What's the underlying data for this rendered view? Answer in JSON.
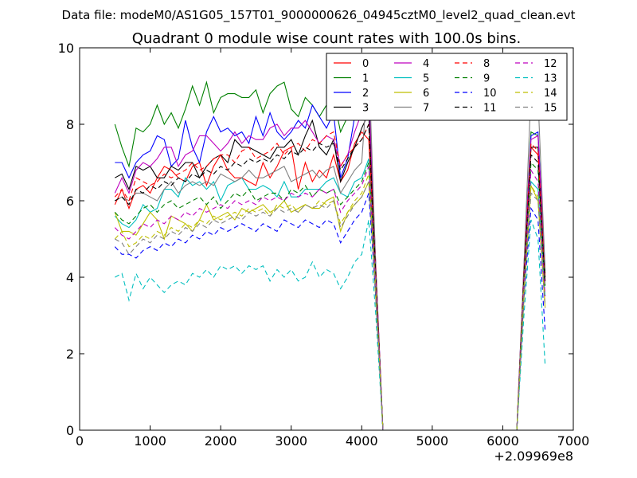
{
  "figure": {
    "suptitle": "Data file: modeM0/AS1G05_157T01_9000000626_04945cztM0_level2_quad_clean.evt"
  },
  "chart_data": {
    "type": "line",
    "title": "Quadrant 0 module wise count rates with 100.0s bins.",
    "xlabel": "",
    "ylabel": "",
    "xlim": [
      0,
      7000
    ],
    "ylim": [
      0,
      10
    ],
    "xticks": [
      0,
      1000,
      2000,
      3000,
      4000,
      5000,
      6000,
      7000
    ],
    "yticks": [
      0,
      2,
      4,
      6,
      8,
      10
    ],
    "x_offset_label": "+2.09969e8",
    "grid": false,
    "legend_placement": "top-right",
    "legend_columns": 4,
    "x": [
      500,
      600,
      700,
      800,
      900,
      1000,
      1100,
      1200,
      1300,
      1400,
      1500,
      1600,
      1700,
      1800,
      1900,
      2000,
      2100,
      2200,
      2300,
      2400,
      2500,
      2600,
      2700,
      2800,
      2900,
      3000,
      3100,
      3200,
      3300,
      3400,
      3500,
      3600,
      3700,
      3800,
      3900,
      4000,
      4100,
      4200,
      4300,
      4400,
      4500,
      4600,
      4700,
      4800,
      4900,
      5000,
      5100,
      5200,
      5300,
      5400,
      5500,
      5600,
      5700,
      5800,
      5900,
      6000,
      6100,
      6200,
      6300,
      6400,
      6500,
      6600
    ],
    "series": [
      {
        "name": "0",
        "color": "#ff0000",
        "dash": "solid",
        "values": [
          5.9,
          6.3,
          5.8,
          6.3,
          6.4,
          6.2,
          6.6,
          6.9,
          6.8,
          6.6,
          6.5,
          6.9,
          7.0,
          6.4,
          6.9,
          7.2,
          6.8,
          6.6,
          6.6,
          6.5,
          6.4,
          7.0,
          6.6,
          6.9,
          7.3,
          7.4,
          6.3,
          7.0,
          6.5,
          6.8,
          6.6,
          7.2,
          6.5,
          6.8,
          7.5,
          7.8,
          7.6,
          4.0,
          0,
          0,
          0,
          0,
          0,
          0,
          0,
          0,
          0,
          0,
          0,
          0,
          0,
          0,
          0,
          0,
          0,
          0,
          0,
          0,
          4.0,
          7.4,
          7.2,
          3.9
        ]
      },
      {
        "name": "1",
        "color": "#008000",
        "dash": "solid",
        "values": [
          8.0,
          7.4,
          6.9,
          7.9,
          7.8,
          8.0,
          8.5,
          8.0,
          8.3,
          7.9,
          8.4,
          9.0,
          8.5,
          9.1,
          8.3,
          8.7,
          8.8,
          8.8,
          8.7,
          8.7,
          8.9,
          8.3,
          8.8,
          9.0,
          9.1,
          8.4,
          8.2,
          8.7,
          8.5,
          8.2,
          8.5,
          8.7,
          7.8,
          8.2,
          8.5,
          8.6,
          8.9,
          4.2,
          0,
          0,
          0,
          0,
          0,
          0,
          0,
          0,
          0,
          0,
          0,
          0,
          0,
          0,
          0,
          0,
          0,
          0,
          0,
          0,
          4.2,
          7.8,
          7.7,
          4.1
        ]
      },
      {
        "name": "2",
        "color": "#0000ff",
        "dash": "solid",
        "values": [
          7.0,
          7.0,
          6.6,
          7.0,
          7.2,
          7.3,
          7.7,
          7.6,
          6.9,
          7.1,
          8.1,
          7.4,
          7.0,
          7.8,
          8.2,
          7.8,
          7.9,
          7.7,
          7.8,
          7.5,
          8.2,
          7.7,
          8.3,
          7.8,
          7.6,
          7.8,
          8.1,
          7.9,
          8.5,
          8.2,
          7.9,
          8.3,
          6.6,
          7.1,
          8.2,
          8.4,
          8.9,
          4.2,
          0,
          0,
          0,
          0,
          0,
          0,
          0,
          0,
          0,
          0,
          0,
          0,
          0,
          0,
          0,
          0,
          0,
          0,
          0,
          0,
          4.2,
          7.7,
          7.8,
          4.2
        ]
      },
      {
        "name": "3",
        "color": "#000000",
        "dash": "solid",
        "values": [
          6.6,
          6.7,
          6.3,
          6.9,
          6.8,
          6.9,
          6.6,
          6.6,
          6.9,
          6.8,
          7.0,
          7.0,
          6.6,
          6.9,
          7.1,
          7.2,
          7.0,
          7.6,
          7.4,
          7.4,
          7.3,
          7.2,
          7.1,
          7.4,
          7.4,
          7.6,
          7.2,
          7.7,
          8.1,
          7.4,
          7.2,
          7.6,
          6.5,
          7.0,
          7.4,
          7.9,
          8.3,
          4.1,
          0,
          0,
          0,
          0,
          0,
          0,
          0,
          0,
          0,
          0,
          0,
          0,
          0,
          0,
          0,
          0,
          0,
          0,
          0,
          0,
          4.1,
          7.4,
          7.4,
          4.0
        ]
      },
      {
        "name": "4",
        "color": "#bf00bf",
        "dash": "solid",
        "values": [
          6.2,
          6.6,
          6.2,
          6.8,
          7.0,
          6.9,
          7.1,
          7.4,
          7.4,
          6.9,
          7.2,
          7.3,
          7.7,
          7.7,
          7.5,
          7.3,
          7.5,
          7.8,
          7.5,
          7.7,
          7.6,
          7.6,
          7.9,
          8.0,
          7.7,
          7.9,
          7.9,
          8.1,
          7.8,
          7.5,
          7.7,
          7.6,
          6.9,
          7.2,
          7.8,
          8.3,
          8.9,
          4.3,
          0,
          0,
          0,
          0,
          0,
          0,
          0,
          0,
          0,
          0,
          0,
          0,
          0,
          0,
          0,
          0,
          0,
          0,
          0,
          0,
          4.3,
          7.6,
          7.7,
          4.2
        ]
      },
      {
        "name": "5",
        "color": "#00bfbf",
        "dash": "solid",
        "values": [
          5.6,
          5.4,
          5.3,
          5.5,
          5.9,
          5.7,
          5.8,
          6.3,
          6.3,
          6.1,
          6.6,
          6.4,
          6.5,
          6.3,
          6.5,
          6.0,
          6.4,
          6.5,
          6.6,
          6.3,
          6.3,
          6.4,
          6.3,
          6.1,
          6.5,
          6.1,
          6.1,
          6.3,
          6.3,
          6.3,
          6.5,
          6.6,
          6.2,
          6.1,
          6.5,
          6.6,
          7.1,
          3.8,
          0,
          0,
          0,
          0,
          0,
          0,
          0,
          0,
          0,
          0,
          0,
          0,
          0,
          0,
          0,
          0,
          0,
          0,
          0,
          0,
          3.8,
          6.5,
          6.3,
          3.5
        ]
      },
      {
        "name": "6",
        "color": "#bfbf00",
        "dash": "solid",
        "values": [
          5.7,
          5.2,
          5.2,
          5.1,
          5.4,
          5.7,
          5.5,
          5.0,
          5.6,
          5.5,
          5.4,
          5.2,
          5.5,
          5.9,
          5.5,
          5.6,
          5.7,
          5.5,
          5.8,
          5.7,
          5.8,
          5.9,
          5.7,
          5.8,
          6.0,
          5.7,
          5.8,
          5.9,
          5.8,
          5.8,
          6.0,
          6.1,
          5.2,
          5.7,
          5.9,
          6.1,
          6.5,
          3.4,
          0,
          0,
          0,
          0,
          0,
          0,
          0,
          0,
          0,
          0,
          0,
          0,
          0,
          0,
          0,
          0,
          0,
          0,
          0,
          0,
          3.4,
          6.4,
          6.0,
          3.2
        ]
      },
      {
        "name": "7",
        "color": "#808080",
        "dash": "solid",
        "values": [
          6.0,
          6.1,
          6.0,
          6.2,
          6.2,
          6.1,
          6.0,
          6.3,
          6.5,
          6.2,
          6.4,
          6.5,
          6.4,
          6.5,
          6.4,
          6.7,
          6.6,
          6.5,
          6.6,
          6.8,
          6.6,
          6.6,
          6.7,
          6.8,
          6.9,
          6.5,
          6.6,
          6.7,
          6.8,
          6.6,
          6.8,
          6.9,
          6.2,
          6.5,
          6.8,
          7.0,
          9.7,
          4.2,
          0,
          0,
          0,
          0,
          0,
          0,
          0,
          0,
          0,
          0,
          0,
          0,
          0,
          0,
          0,
          0,
          0,
          0,
          0,
          0,
          4.3,
          8.9,
          8.7,
          4.2
        ]
      },
      {
        "name": "8",
        "color": "#ff0000",
        "dash": "dashed",
        "values": [
          6.1,
          6.3,
          6.0,
          6.6,
          6.5,
          6.4,
          6.5,
          6.7,
          6.6,
          6.7,
          6.8,
          7.0,
          6.8,
          6.9,
          7.1,
          7.2,
          7.2,
          7.0,
          7.3,
          7.4,
          7.1,
          7.2,
          7.3,
          7.5,
          7.2,
          7.4,
          7.5,
          7.3,
          7.6,
          7.5,
          7.7,
          7.8,
          6.9,
          7.2,
          7.4,
          7.6,
          8.0,
          4.1,
          0,
          0,
          0,
          0,
          0,
          0,
          0,
          0,
          0,
          0,
          0,
          0,
          0,
          0,
          0,
          0,
          0,
          0,
          0,
          0,
          4.1,
          7.5,
          7.3,
          3.9
        ]
      },
      {
        "name": "9",
        "color": "#008000",
        "dash": "dashed",
        "values": [
          5.7,
          5.5,
          5.4,
          5.6,
          5.8,
          5.9,
          5.7,
          5.9,
          6.0,
          5.8,
          5.9,
          6.0,
          6.1,
          5.9,
          6.1,
          5.8,
          6.0,
          6.2,
          6.1,
          6.3,
          6.0,
          6.1,
          6.2,
          6.2,
          6.0,
          6.3,
          6.2,
          6.4,
          6.1,
          6.3,
          6.2,
          6.3,
          5.9,
          6.1,
          6.3,
          6.5,
          7.0,
          3.9,
          0,
          0,
          0,
          0,
          0,
          0,
          0,
          0,
          0,
          0,
          0,
          0,
          0,
          0,
          0,
          0,
          0,
          0,
          0,
          0,
          3.9,
          7.0,
          6.8,
          3.7
        ]
      },
      {
        "name": "10",
        "color": "#0000ff",
        "dash": "dashed",
        "values": [
          4.8,
          4.6,
          4.6,
          4.5,
          4.7,
          4.8,
          4.7,
          4.9,
          4.8,
          5.0,
          4.9,
          5.1,
          5.0,
          5.2,
          5.1,
          5.3,
          5.2,
          5.3,
          5.4,
          5.3,
          5.2,
          5.4,
          5.3,
          5.2,
          5.5,
          5.4,
          5.3,
          5.5,
          5.4,
          5.3,
          5.5,
          5.4,
          4.9,
          5.2,
          5.5,
          5.7,
          6.2,
          3.5,
          0,
          0,
          0,
          0,
          0,
          0,
          0,
          0,
          0,
          0,
          0,
          0,
          0,
          0,
          0,
          0,
          0,
          0,
          0,
          0,
          3.5,
          5.8,
          5.5,
          2.6
        ]
      },
      {
        "name": "11",
        "color": "#000000",
        "dash": "dashed",
        "values": [
          6.0,
          6.1,
          5.9,
          6.3,
          6.2,
          6.4,
          6.3,
          6.5,
          6.4,
          6.6,
          6.5,
          6.7,
          6.6,
          6.8,
          6.7,
          6.9,
          6.8,
          7.0,
          6.9,
          7.1,
          7.0,
          7.1,
          7.0,
          7.2,
          7.1,
          7.3,
          7.2,
          7.4,
          7.3,
          7.5,
          7.4,
          7.5,
          6.8,
          7.1,
          7.4,
          7.6,
          8.0,
          4.0,
          0,
          0,
          0,
          0,
          0,
          0,
          0,
          0,
          0,
          0,
          0,
          0,
          0,
          0,
          0,
          0,
          0,
          0,
          0,
          0,
          4.0,
          7.2,
          7.0,
          3.8
        ]
      },
      {
        "name": "12",
        "color": "#bf00bf",
        "dash": "dashed",
        "values": [
          5.3,
          5.1,
          5.0,
          5.2,
          5.4,
          5.3,
          5.5,
          5.4,
          5.6,
          5.5,
          5.7,
          5.6,
          5.8,
          5.7,
          5.8,
          5.9,
          5.8,
          6.0,
          5.9,
          6.0,
          5.9,
          6.1,
          6.0,
          6.1,
          6.0,
          6.2,
          6.1,
          6.2,
          6.1,
          6.3,
          6.2,
          6.3,
          5.7,
          6.0,
          6.2,
          6.4,
          6.9,
          3.8,
          0,
          0,
          0,
          0,
          0,
          0,
          0,
          0,
          0,
          0,
          0,
          0,
          0,
          0,
          0,
          0,
          0,
          0,
          0,
          0,
          3.8,
          6.8,
          6.5,
          3.5
        ]
      },
      {
        "name": "13",
        "color": "#00bfbf",
        "dash": "dashed",
        "values": [
          4.0,
          4.1,
          3.4,
          4.1,
          3.7,
          4.0,
          3.8,
          3.6,
          3.8,
          3.9,
          3.8,
          4.1,
          4.0,
          4.2,
          4.0,
          4.3,
          4.2,
          4.3,
          4.1,
          4.3,
          4.2,
          4.3,
          3.9,
          4.2,
          4.0,
          4.2,
          3.9,
          4.0,
          4.4,
          4.0,
          4.2,
          4.1,
          3.7,
          4.0,
          4.4,
          4.6,
          5.5,
          3.0,
          0,
          0,
          0,
          0,
          0,
          0,
          0,
          0,
          0,
          0,
          0,
          0,
          0,
          0,
          0,
          0,
          0,
          0,
          0,
          0,
          3.0,
          5.5,
          5.0,
          1.7
        ]
      },
      {
        "name": "14",
        "color": "#bfbf00",
        "dash": "dashed",
        "values": [
          5.0,
          5.2,
          4.8,
          4.9,
          5.1,
          5.0,
          5.2,
          5.1,
          5.3,
          5.2,
          5.4,
          5.3,
          5.5,
          5.4,
          5.6,
          5.5,
          5.6,
          5.7,
          5.6,
          5.8,
          5.7,
          5.8,
          5.6,
          5.9,
          5.8,
          5.9,
          5.7,
          5.9,
          5.8,
          6.0,
          5.9,
          6.0,
          5.4,
          5.7,
          6.0,
          6.2,
          6.7,
          3.7,
          0,
          0,
          0,
          0,
          0,
          0,
          0,
          0,
          0,
          0,
          0,
          0,
          0,
          0,
          0,
          0,
          0,
          0,
          0,
          0,
          3.7,
          6.4,
          6.1,
          3.3
        ]
      },
      {
        "name": "15",
        "color": "#808080",
        "dash": "dashed",
        "values": [
          5.0,
          4.9,
          4.6,
          4.8,
          5.0,
          4.9,
          5.1,
          5.0,
          5.2,
          5.1,
          5.3,
          5.2,
          5.4,
          5.3,
          5.5,
          5.4,
          5.5,
          5.6,
          5.5,
          5.7,
          5.6,
          5.7,
          5.6,
          5.8,
          5.7,
          5.8,
          5.7,
          5.9,
          5.8,
          5.9,
          5.8,
          6.0,
          5.3,
          5.6,
          5.9,
          6.1,
          6.5,
          3.6,
          0,
          0,
          0,
          0,
          0,
          0,
          0,
          0,
          0,
          0,
          0,
          0,
          0,
          0,
          0,
          0,
          0,
          0,
          0,
          0,
          3.6,
          6.2,
          6.0,
          3.2
        ]
      }
    ]
  }
}
